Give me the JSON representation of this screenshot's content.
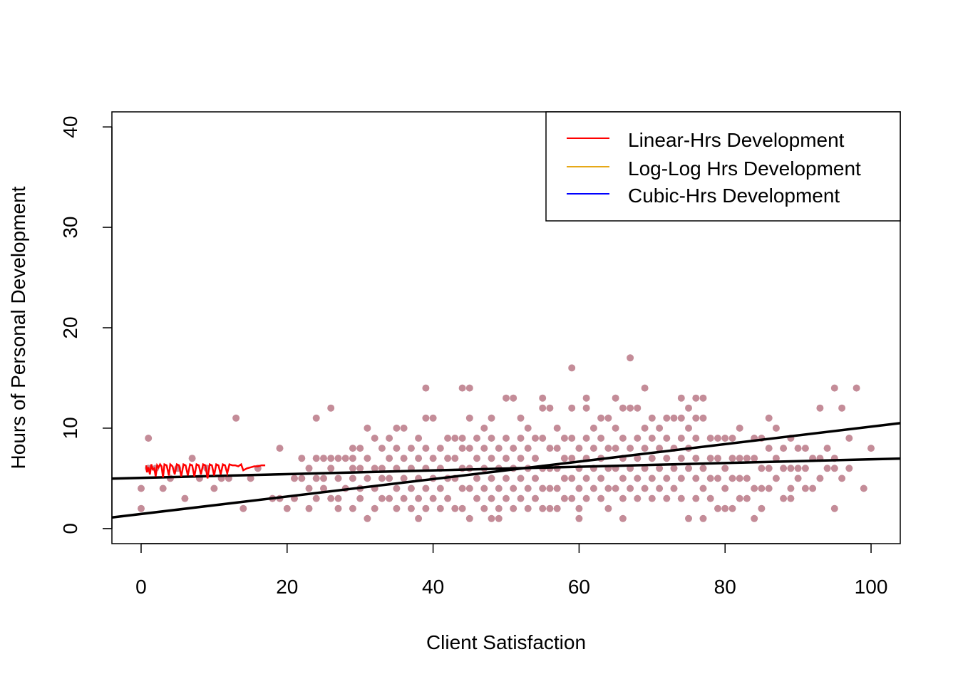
{
  "chart_data": {
    "type": "scatter",
    "xlabel": "Client Satisfaction",
    "ylabel": "Hours of Personal Development",
    "xlim": [
      -4,
      104
    ],
    "ylim": [
      -1.5,
      41.5
    ],
    "x_ticks": [
      "0",
      "20",
      "40",
      "60",
      "80",
      "100"
    ],
    "y_ticks": [
      "0",
      "10",
      "20",
      "30",
      "40"
    ],
    "grid": false,
    "legend_position": "top-right",
    "point_color": "#c48c98",
    "legend": [
      {
        "label": "Linear-Hrs Development",
        "color": "#ff0000"
      },
      {
        "label": "Log-Log Hrs Development",
        "color": "#e6a817"
      },
      {
        "label": "Cubic-Hrs Development",
        "color": "#0000ff"
      }
    ],
    "points": [
      [
        0,
        2
      ],
      [
        0,
        4
      ],
      [
        1,
        6
      ],
      [
        1,
        9
      ],
      [
        2,
        6
      ],
      [
        3,
        4
      ],
      [
        4,
        5
      ],
      [
        5,
        6
      ],
      [
        6,
        3
      ],
      [
        7,
        7
      ],
      [
        8,
        5
      ],
      [
        9,
        6
      ],
      [
        10,
        4
      ],
      [
        11,
        5
      ],
      [
        12,
        5
      ],
      [
        13,
        11
      ],
      [
        14,
        2
      ],
      [
        15,
        5
      ],
      [
        16,
        6
      ],
      [
        18,
        3
      ],
      [
        19,
        8
      ],
      [
        19,
        3
      ],
      [
        20,
        2
      ],
      [
        21,
        5
      ],
      [
        21,
        3
      ],
      [
        22,
        7
      ],
      [
        22,
        5
      ],
      [
        23,
        6
      ],
      [
        23,
        4
      ],
      [
        23,
        2
      ],
      [
        24,
        11
      ],
      [
        24,
        7
      ],
      [
        24,
        5
      ],
      [
        24,
        3
      ],
      [
        25,
        7
      ],
      [
        25,
        5
      ],
      [
        25,
        4
      ],
      [
        26,
        12
      ],
      [
        26,
        7
      ],
      [
        26,
        6
      ],
      [
        26,
        3
      ],
      [
        27,
        7
      ],
      [
        27,
        5
      ],
      [
        27,
        3
      ],
      [
        27,
        2
      ],
      [
        28,
        7
      ],
      [
        28,
        4
      ],
      [
        29,
        8
      ],
      [
        29,
        7
      ],
      [
        29,
        6
      ],
      [
        29,
        5
      ],
      [
        29,
        2
      ],
      [
        30,
        8
      ],
      [
        30,
        6
      ],
      [
        30,
        4
      ],
      [
        30,
        3
      ],
      [
        31,
        10
      ],
      [
        31,
        7
      ],
      [
        31,
        5
      ],
      [
        31,
        1
      ],
      [
        32,
        9
      ],
      [
        32,
        6
      ],
      [
        32,
        4
      ],
      [
        32,
        2
      ],
      [
        33,
        8
      ],
      [
        33,
        6
      ],
      [
        33,
        5
      ],
      [
        33,
        3
      ],
      [
        34,
        9
      ],
      [
        34,
        7
      ],
      [
        34,
        5
      ],
      [
        34,
        3
      ],
      [
        35,
        10
      ],
      [
        35,
        8
      ],
      [
        35,
        6
      ],
      [
        35,
        4
      ],
      [
        35,
        2
      ],
      [
        36,
        10
      ],
      [
        36,
        7
      ],
      [
        36,
        5
      ],
      [
        36,
        3
      ],
      [
        37,
        8
      ],
      [
        37,
        6
      ],
      [
        37,
        4
      ],
      [
        37,
        2
      ],
      [
        38,
        9
      ],
      [
        38,
        7
      ],
      [
        38,
        5
      ],
      [
        38,
        3
      ],
      [
        38,
        1
      ],
      [
        39,
        14
      ],
      [
        39,
        11
      ],
      [
        39,
        8
      ],
      [
        39,
        6
      ],
      [
        39,
        4
      ],
      [
        39,
        2
      ],
      [
        40,
        11
      ],
      [
        40,
        7
      ],
      [
        40,
        5
      ],
      [
        40,
        3
      ],
      [
        41,
        8
      ],
      [
        41,
        6
      ],
      [
        41,
        4
      ],
      [
        41,
        2
      ],
      [
        42,
        9
      ],
      [
        42,
        7
      ],
      [
        42,
        5
      ],
      [
        42,
        3
      ],
      [
        43,
        9
      ],
      [
        43,
        7
      ],
      [
        43,
        5
      ],
      [
        43,
        2
      ],
      [
        44,
        14
      ],
      [
        44,
        9
      ],
      [
        44,
        8
      ],
      [
        44,
        6
      ],
      [
        44,
        4
      ],
      [
        44,
        2
      ],
      [
        45,
        14
      ],
      [
        45,
        11
      ],
      [
        45,
        8
      ],
      [
        45,
        6
      ],
      [
        45,
        4
      ],
      [
        45,
        1
      ],
      [
        46,
        9
      ],
      [
        46,
        7
      ],
      [
        46,
        5
      ],
      [
        46,
        3
      ],
      [
        47,
        10
      ],
      [
        47,
        8
      ],
      [
        47,
        6
      ],
      [
        47,
        4
      ],
      [
        47,
        2
      ],
      [
        48,
        11
      ],
      [
        48,
        9
      ],
      [
        48,
        7
      ],
      [
        48,
        5
      ],
      [
        48,
        3
      ],
      [
        48,
        1
      ],
      [
        49,
        1
      ],
      [
        49,
        8
      ],
      [
        49,
        6
      ],
      [
        49,
        4
      ],
      [
        49,
        2
      ],
      [
        50,
        13
      ],
      [
        50,
        9
      ],
      [
        50,
        7
      ],
      [
        50,
        5
      ],
      [
        50,
        3
      ],
      [
        51,
        13
      ],
      [
        51,
        8
      ],
      [
        51,
        6
      ],
      [
        51,
        4
      ],
      [
        51,
        2
      ],
      [
        52,
        11
      ],
      [
        52,
        9
      ],
      [
        52,
        7
      ],
      [
        52,
        5
      ],
      [
        52,
        3
      ],
      [
        53,
        10
      ],
      [
        53,
        8
      ],
      [
        53,
        6
      ],
      [
        53,
        4
      ],
      [
        53,
        2
      ],
      [
        54,
        9
      ],
      [
        54,
        7
      ],
      [
        54,
        5
      ],
      [
        54,
        3
      ],
      [
        55,
        13
      ],
      [
        55,
        12
      ],
      [
        55,
        9
      ],
      [
        55,
        6
      ],
      [
        55,
        4
      ],
      [
        55,
        2
      ],
      [
        56,
        12
      ],
      [
        56,
        8
      ],
      [
        56,
        6
      ],
      [
        56,
        4
      ],
      [
        56,
        2
      ],
      [
        57,
        10
      ],
      [
        57,
        8
      ],
      [
        57,
        6
      ],
      [
        57,
        4
      ],
      [
        57,
        2
      ],
      [
        58,
        9
      ],
      [
        58,
        7
      ],
      [
        58,
        5
      ],
      [
        58,
        3
      ],
      [
        59,
        16
      ],
      [
        59,
        12
      ],
      [
        59,
        9
      ],
      [
        59,
        7
      ],
      [
        59,
        5
      ],
      [
        59,
        3
      ],
      [
        60,
        1
      ],
      [
        60,
        8
      ],
      [
        60,
        6
      ],
      [
        60,
        4
      ],
      [
        60,
        2
      ],
      [
        61,
        13
      ],
      [
        61,
        12
      ],
      [
        61,
        9
      ],
      [
        61,
        7
      ],
      [
        61,
        5
      ],
      [
        61,
        3
      ],
      [
        62,
        10
      ],
      [
        62,
        8
      ],
      [
        62,
        6
      ],
      [
        62,
        4
      ],
      [
        63,
        11
      ],
      [
        63,
        9
      ],
      [
        63,
        7
      ],
      [
        63,
        5
      ],
      [
        63,
        3
      ],
      [
        64,
        11
      ],
      [
        64,
        8
      ],
      [
        64,
        6
      ],
      [
        64,
        4
      ],
      [
        64,
        2
      ],
      [
        65,
        13
      ],
      [
        65,
        10
      ],
      [
        65,
        8
      ],
      [
        65,
        6
      ],
      [
        65,
        4
      ],
      [
        66,
        12
      ],
      [
        66,
        9
      ],
      [
        66,
        7
      ],
      [
        66,
        5
      ],
      [
        66,
        3
      ],
      [
        66,
        1
      ],
      [
        67,
        17
      ],
      [
        67,
        12
      ],
      [
        67,
        8
      ],
      [
        67,
        6
      ],
      [
        67,
        4
      ],
      [
        68,
        12
      ],
      [
        68,
        9
      ],
      [
        68,
        7
      ],
      [
        68,
        5
      ],
      [
        68,
        3
      ],
      [
        69,
        14
      ],
      [
        69,
        10
      ],
      [
        69,
        8
      ],
      [
        69,
        6
      ],
      [
        69,
        4
      ],
      [
        70,
        11
      ],
      [
        70,
        9
      ],
      [
        70,
        7
      ],
      [
        70,
        5
      ],
      [
        70,
        3
      ],
      [
        71,
        10
      ],
      [
        71,
        8
      ],
      [
        71,
        6
      ],
      [
        71,
        4
      ],
      [
        72,
        11
      ],
      [
        72,
        9
      ],
      [
        72,
        7
      ],
      [
        72,
        5
      ],
      [
        72,
        3
      ],
      [
        73,
        11
      ],
      [
        73,
        8
      ],
      [
        73,
        6
      ],
      [
        73,
        4
      ],
      [
        74,
        13
      ],
      [
        74,
        11
      ],
      [
        74,
        9
      ],
      [
        74,
        7
      ],
      [
        74,
        5
      ],
      [
        74,
        3
      ],
      [
        75,
        12
      ],
      [
        75,
        10
      ],
      [
        75,
        8
      ],
      [
        75,
        6
      ],
      [
        75,
        1
      ],
      [
        76,
        13
      ],
      [
        76,
        11
      ],
      [
        76,
        9
      ],
      [
        76,
        7
      ],
      [
        76,
        5
      ],
      [
        76,
        3
      ],
      [
        77,
        13
      ],
      [
        77,
        11
      ],
      [
        77,
        6
      ],
      [
        77,
        4
      ],
      [
        77,
        1
      ],
      [
        78,
        9
      ],
      [
        78,
        7
      ],
      [
        78,
        5
      ],
      [
        78,
        3
      ],
      [
        79,
        9
      ],
      [
        79,
        7
      ],
      [
        79,
        5
      ],
      [
        79,
        2
      ],
      [
        80,
        9
      ],
      [
        80,
        6
      ],
      [
        80,
        4
      ],
      [
        80,
        2
      ],
      [
        81,
        9
      ],
      [
        81,
        7
      ],
      [
        81,
        5
      ],
      [
        81,
        2
      ],
      [
        82,
        10
      ],
      [
        82,
        7
      ],
      [
        82,
        5
      ],
      [
        82,
        3
      ],
      [
        83,
        7
      ],
      [
        83,
        5
      ],
      [
        83,
        3
      ],
      [
        84,
        9
      ],
      [
        84,
        7
      ],
      [
        84,
        4
      ],
      [
        84,
        1
      ],
      [
        85,
        9
      ],
      [
        85,
        6
      ],
      [
        85,
        4
      ],
      [
        85,
        2
      ],
      [
        86,
        11
      ],
      [
        86,
        8
      ],
      [
        86,
        6
      ],
      [
        86,
        4
      ],
      [
        87,
        10
      ],
      [
        87,
        7
      ],
      [
        87,
        5
      ],
      [
        88,
        8
      ],
      [
        88,
        6
      ],
      [
        88,
        3
      ],
      [
        89,
        9
      ],
      [
        89,
        6
      ],
      [
        89,
        4
      ],
      [
        89,
        3
      ],
      [
        90,
        8
      ],
      [
        90,
        6
      ],
      [
        90,
        5
      ],
      [
        91,
        8
      ],
      [
        91,
        6
      ],
      [
        91,
        4
      ],
      [
        92,
        7
      ],
      [
        92,
        4
      ],
      [
        93,
        12
      ],
      [
        93,
        7
      ],
      [
        93,
        5
      ],
      [
        94,
        8
      ],
      [
        94,
        6
      ],
      [
        95,
        14
      ],
      [
        95,
        7
      ],
      [
        95,
        6
      ],
      [
        95,
        2
      ],
      [
        96,
        12
      ],
      [
        96,
        5
      ],
      [
        97,
        9
      ],
      [
        97,
        6
      ],
      [
        98,
        14
      ],
      [
        99,
        4
      ],
      [
        100,
        8
      ]
    ],
    "linear_fit": {
      "intercept": 5.05,
      "slope": 0.0185
    },
    "cubic_fit": {
      "intercept": 1.45,
      "slope": 0.087
    },
    "red_series": [
      [
        0.7,
        6.3
      ],
      [
        0.8,
        5.6
      ],
      [
        1.0,
        6.1
      ],
      [
        1.2,
        5.4
      ],
      [
        1.4,
        6.4
      ],
      [
        1.6,
        5.9
      ],
      [
        1.8,
        6.0
      ],
      [
        2.0,
        5.2
      ],
      [
        2.2,
        6.3
      ],
      [
        2.4,
        6.1
      ],
      [
        2.6,
        6.4
      ],
      [
        2.8,
        6.2
      ],
      [
        3.0,
        5.1
      ],
      [
        3.2,
        6.4
      ],
      [
        3.5,
        6.3
      ],
      [
        3.8,
        5.3
      ],
      [
        4.0,
        6.4
      ],
      [
        4.3,
        6.2
      ],
      [
        4.6,
        5.4
      ],
      [
        4.9,
        6.4
      ],
      [
        5.2,
        6.3
      ],
      [
        5.5,
        5.2
      ],
      [
        5.8,
        6.4
      ],
      [
        6.1,
        6.3
      ],
      [
        6.4,
        5.3
      ],
      [
        6.7,
        6.4
      ],
      [
        7.0,
        6.3
      ],
      [
        7.3,
        5.2
      ],
      [
        7.6,
        6.4
      ],
      [
        7.9,
        6.3
      ],
      [
        8.2,
        5.4
      ],
      [
        8.5,
        6.4
      ],
      [
        8.8,
        6.3
      ],
      [
        9.1,
        5.0
      ],
      [
        9.4,
        6.4
      ],
      [
        9.7,
        6.3
      ],
      [
        10.0,
        5.3
      ],
      [
        10.3,
        6.4
      ],
      [
        10.6,
        6.3
      ],
      [
        10.9,
        5.4
      ],
      [
        11.2,
        6.4
      ],
      [
        11.5,
        6.3
      ],
      [
        11.8,
        5.5
      ],
      [
        12.1,
        6.4
      ],
      [
        12.5,
        6.3
      ],
      [
        12.9,
        6.3
      ],
      [
        13.3,
        6.2
      ],
      [
        13.7,
        6.4
      ],
      [
        14.0,
        5.8
      ],
      [
        14.5,
        6.0
      ],
      [
        15.0,
        6.1
      ],
      [
        15.5,
        6.2
      ],
      [
        16.0,
        6.2
      ],
      [
        16.5,
        6.3
      ],
      [
        17.0,
        6.3
      ]
    ]
  }
}
